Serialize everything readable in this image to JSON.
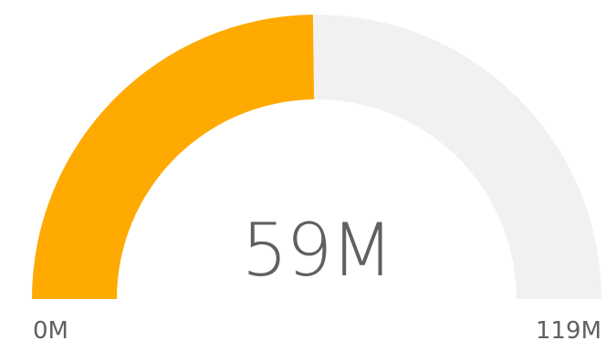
{
  "chart_data": {
    "type": "gauge",
    "min": 0,
    "max": 119,
    "value": 59,
    "value_label": "59M",
    "min_label": "0M",
    "max_label": "119M",
    "fill_color": "#FFAA00",
    "track_color": "#F2F1F0",
    "text_color": "#606060"
  }
}
